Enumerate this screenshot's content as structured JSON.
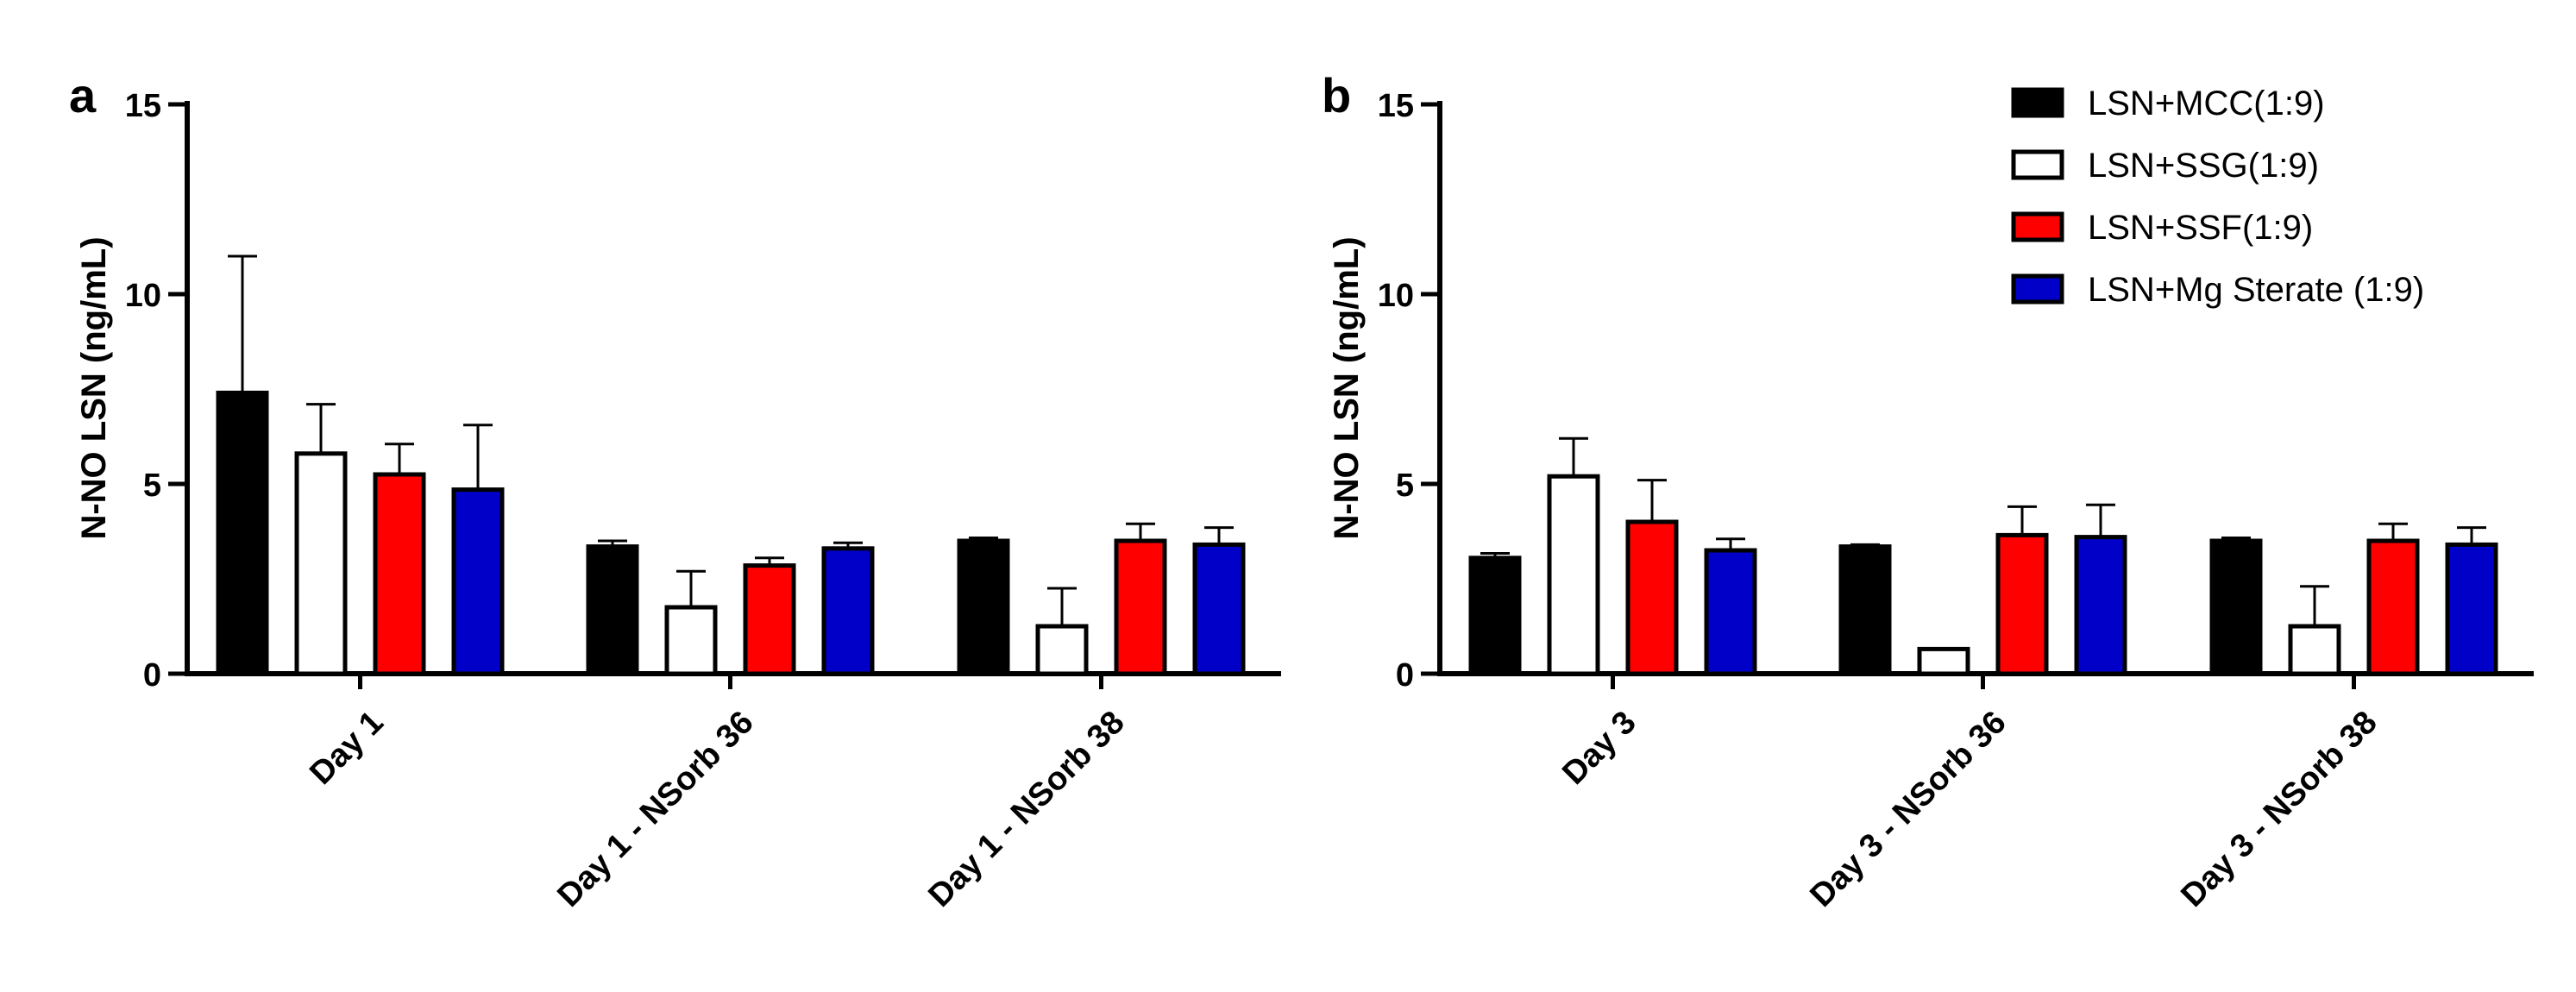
{
  "legend": [
    {
      "label": "LSN+MCC(1:9)",
      "color": "#000000"
    },
    {
      "label": "LSN+SSG(1:9)",
      "color": "#ffffff"
    },
    {
      "label": "LSN+SSF(1:9)",
      "color": "#ff0000"
    },
    {
      "label": "LSN+Mg Sterate (1:9)",
      "color": "#0000c8"
    }
  ],
  "chart_data": [
    {
      "type": "bar",
      "panel": "a",
      "ylabel": "N-NO LSN (ng/mL)",
      "ylim": [
        0,
        15
      ],
      "yticks": [
        "0",
        "5",
        "10",
        "15"
      ],
      "categories": [
        "Day 1",
        "Day 1 - NSorb 36",
        "Day 1 - NSorb 38"
      ],
      "series": [
        {
          "name": "LSN+MCC(1:9)",
          "values": [
            7.4,
            3.35,
            3.5
          ],
          "errors": [
            3.6,
            0.15,
            0.08
          ]
        },
        {
          "name": "LSN+SSG(1:9)",
          "values": [
            5.8,
            1.75,
            1.25
          ],
          "errors": [
            1.3,
            0.95,
            1.0
          ]
        },
        {
          "name": "LSN+SSF(1:9)",
          "values": [
            5.25,
            2.85,
            3.5
          ],
          "errors": [
            0.8,
            0.2,
            0.45
          ]
        },
        {
          "name": "LSN+Mg Sterate (1:9)",
          "values": [
            4.85,
            3.3,
            3.4
          ],
          "errors": [
            1.7,
            0.15,
            0.45
          ]
        }
      ]
    },
    {
      "type": "bar",
      "panel": "b",
      "ylabel": "N-NO LSN (ng/mL)",
      "ylim": [
        0,
        15
      ],
      "yticks": [
        "0",
        "5",
        "10",
        "15"
      ],
      "categories": [
        "Day 3",
        "Day 3 - NSorb 36",
        "Day 3 - NSorb 38"
      ],
      "series": [
        {
          "name": "LSN+MCC(1:9)",
          "values": [
            3.05,
            3.35,
            3.5
          ],
          "errors": [
            0.12,
            0.05,
            0.08
          ]
        },
        {
          "name": "LSN+SSG(1:9)",
          "values": [
            5.2,
            0.65,
            1.25
          ],
          "errors": [
            1.0,
            0.0,
            1.05
          ]
        },
        {
          "name": "LSN+SSF(1:9)",
          "values": [
            4.0,
            3.65,
            3.5
          ],
          "errors": [
            1.1,
            0.75,
            0.45
          ]
        },
        {
          "name": "LSN+Mg Sterate (1:9)",
          "values": [
            3.25,
            3.6,
            3.4
          ],
          "errors": [
            0.3,
            0.85,
            0.45
          ]
        }
      ]
    }
  ]
}
